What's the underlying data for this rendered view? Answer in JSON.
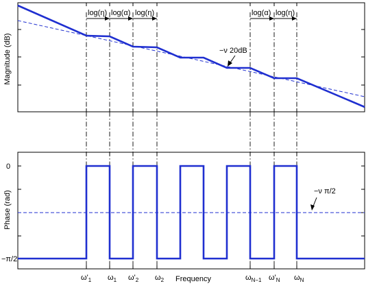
{
  "magnitude_axis": {
    "ylabel": "Magnitude (dB)"
  },
  "phase_axis": {
    "ylabel": "Phase (rad)",
    "ytick_top": "0",
    "ytick_bottom": "−π/2"
  },
  "xlabel": "Frequency",
  "frequency_ticks": [
    {
      "base": "ω'",
      "sub": "1"
    },
    {
      "base": "ω",
      "sub": "1"
    },
    {
      "base": "ω'",
      "sub": "2"
    },
    {
      "base": "ω",
      "sub": "2"
    },
    {
      "base": "ω",
      "sub": "N−1"
    },
    {
      "base": "ω'",
      "sub": "N"
    },
    {
      "base": "ω",
      "sub": "N"
    }
  ],
  "interval_labels": {
    "left": [
      "log(η)",
      "log(α)",
      "log(η)"
    ],
    "right": [
      "log(α)",
      "log(η)"
    ]
  },
  "slope_annotation": "−ν 20dB",
  "phase_annotation": "−ν π/2",
  "colors": {
    "curve": "#1f2fd0",
    "axes": "#000000"
  }
}
